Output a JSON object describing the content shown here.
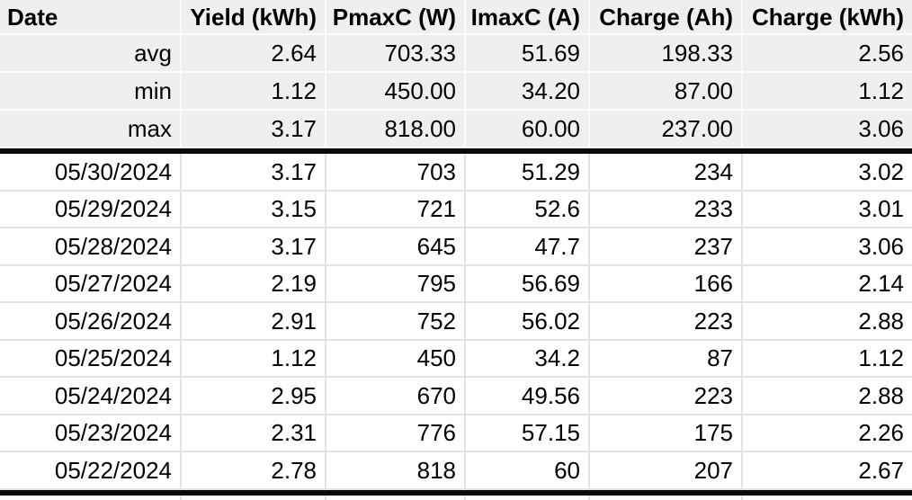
{
  "table": {
    "columns": [
      {
        "label": "Date",
        "align": "left"
      },
      {
        "label": "Yield (kWh)",
        "align": "right"
      },
      {
        "label": "PmaxC (W)",
        "align": "right"
      },
      {
        "label": "ImaxC (A)",
        "align": "right"
      },
      {
        "label": "Charge (Ah)",
        "align": "right"
      },
      {
        "label": "Charge (kWh)",
        "align": "right"
      }
    ],
    "note_marker": {
      "column_index": 3,
      "column_label": "ImaxC (A)",
      "color": "#f9b208"
    },
    "summary_rows": [
      {
        "label": "avg",
        "values": [
          "2.64",
          "703.33",
          "51.69",
          "198.33",
          "2.56"
        ]
      },
      {
        "label": "min",
        "values": [
          "1.12",
          "450.00",
          "34.20",
          "87.00",
          "1.12"
        ]
      },
      {
        "label": "max",
        "values": [
          "3.17",
          "818.00",
          "60.00",
          "237.00",
          "3.06"
        ]
      }
    ],
    "data_rows": [
      {
        "date": "05/30/2024",
        "values": [
          "3.17",
          "703",
          "51.29",
          "234",
          "3.02"
        ]
      },
      {
        "date": "05/29/2024",
        "values": [
          "3.15",
          "721",
          "52.6",
          "233",
          "3.01"
        ]
      },
      {
        "date": "05/28/2024",
        "values": [
          "3.17",
          "645",
          "47.7",
          "237",
          "3.06"
        ]
      },
      {
        "date": "05/27/2024",
        "values": [
          "2.19",
          "795",
          "56.69",
          "166",
          "2.14"
        ]
      },
      {
        "date": "05/26/2024",
        "values": [
          "2.91",
          "752",
          "56.02",
          "223",
          "2.88"
        ]
      },
      {
        "date": "05/25/2024",
        "values": [
          "1.12",
          "450",
          "34.2",
          "87",
          "1.12"
        ]
      },
      {
        "date": "05/24/2024",
        "values": [
          "2.95",
          "670",
          "49.56",
          "223",
          "2.88"
        ]
      },
      {
        "date": "05/23/2024",
        "values": [
          "2.31",
          "776",
          "57.15",
          "175",
          "2.26"
        ]
      },
      {
        "date": "05/22/2024",
        "values": [
          "2.78",
          "818",
          "60",
          "207",
          "2.67"
        ]
      }
    ]
  },
  "colors": {
    "summary_background": "#efefef",
    "summary_gridline": "#fbfbfb",
    "data_gridline": "#e2e2e2",
    "divider": "#0a0a0a",
    "note_marker": "#f9b208",
    "text": "#000000"
  }
}
